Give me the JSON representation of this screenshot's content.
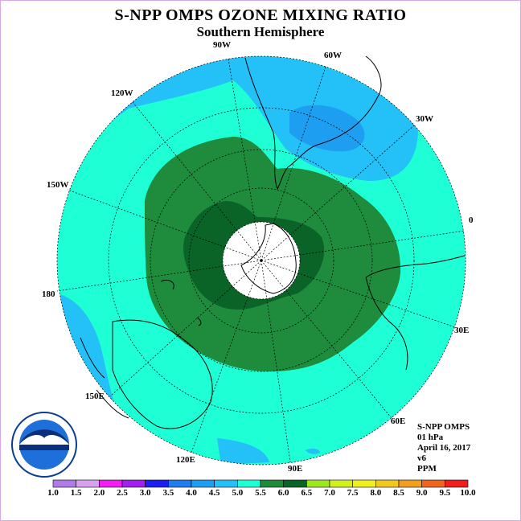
{
  "title": "S-NPP OMPS OZONE MIXING RATIO",
  "subtitle": "Southern Hemisphere",
  "meridian_labels": [
    "90W",
    "60W",
    "30W",
    "0",
    "30E",
    "60E",
    "90E",
    "120E",
    "150E",
    "180",
    "150W",
    "120W"
  ],
  "info": {
    "instrument": "S-NPP OMPS",
    "level": "01 hPa",
    "date": "April 16, 2017",
    "version": "v6",
    "units": "PPM"
  },
  "logo_text": "NOAA",
  "colorbar": {
    "ticks": [
      "1.0",
      "1.5",
      "2.0",
      "2.5",
      "3.0",
      "3.5",
      "4.0",
      "4.5",
      "5.0",
      "5.5",
      "6.0",
      "6.5",
      "7.0",
      "7.5",
      "8.0",
      "8.5",
      "9.0",
      "9.5",
      "10.0"
    ],
    "colors": [
      "#b07be8",
      "#d9a0f0",
      "#f01ef0",
      "#a020f0",
      "#1e1ef0",
      "#1e7ef0",
      "#1e9ef0",
      "#24c0f8",
      "#1effd6",
      "#1e8c3c",
      "#0a6428",
      "#9ee61e",
      "#d2f01e",
      "#f0f01e",
      "#f0c81e",
      "#f0a01e",
      "#f0641e",
      "#f01e1e",
      "#8c5a3c"
    ]
  }
}
